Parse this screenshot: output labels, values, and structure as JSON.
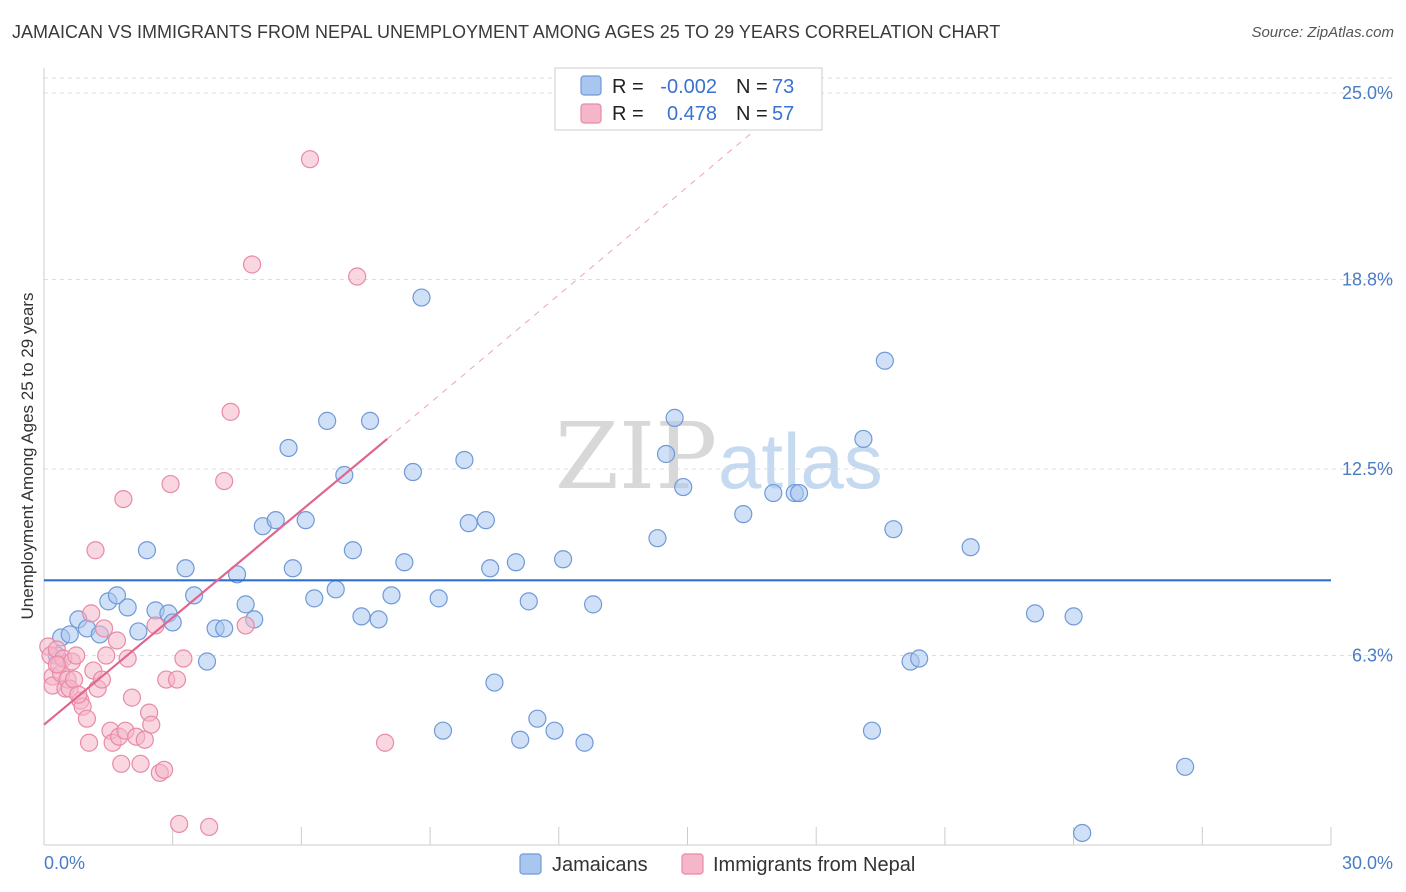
{
  "header": {
    "title": "JAMAICAN VS IMMIGRANTS FROM NEPAL UNEMPLOYMENT AMONG AGES 25 TO 29 YEARS CORRELATION CHART",
    "source": "Source: ZipAtlas.com"
  },
  "watermark": {
    "zip": "ZIP",
    "atlas": "atlas"
  },
  "colors": {
    "blue_fill": "#a9c6ee",
    "blue_stroke": "#6f9ad8",
    "blue_line": "#2f6fd0",
    "pink_fill": "#f4b6c8",
    "pink_stroke": "#e88aa8",
    "pink_line": "#e0668f",
    "tick_text": "#4a7cc4",
    "grid": "#dddddd"
  },
  "stats": {
    "r_label": "R =",
    "n_label": "N =",
    "rows": [
      {
        "series": "Jamaicans",
        "r": "-0.002",
        "n": "73"
      },
      {
        "series": "Immigrants from Nepal",
        "r": "0.478",
        "n": "57"
      }
    ]
  },
  "chart_data": {
    "type": "scatter",
    "title": "JAMAICAN VS IMMIGRANTS FROM NEPAL UNEMPLOYMENT AMONG AGES 25 TO 29 YEARS CORRELATION CHART",
    "xlabel": "",
    "ylabel": "Unemployment Among Ages 25 to 29 years",
    "xlim": [
      0,
      30
    ],
    "ylim": [
      0,
      25.5
    ],
    "x_tick_labels": [
      "0.0%",
      "30.0%"
    ],
    "y_ticks": [
      6.3,
      12.5,
      18.8,
      25.0
    ],
    "y_tick_labels": [
      "6.3%",
      "12.5%",
      "18.8%",
      "25.0%"
    ],
    "legend": [
      "Jamaicans",
      "Immigrants from Nepal"
    ],
    "series": [
      {
        "name": "Jamaicans",
        "color": "#a9c6ee",
        "trend": {
          "x": [
            0,
            30
          ],
          "y": [
            8.8,
            8.8
          ]
        },
        "points": [
          [
            0.3,
            6.3
          ],
          [
            0.4,
            6.9
          ],
          [
            0.6,
            7.0
          ],
          [
            0.8,
            7.5
          ],
          [
            1.0,
            7.2
          ],
          [
            1.3,
            7.0
          ],
          [
            1.5,
            8.1
          ],
          [
            1.7,
            8.3
          ],
          [
            1.95,
            7.9
          ],
          [
            2.2,
            7.1
          ],
          [
            2.4,
            9.8
          ],
          [
            2.6,
            7.8
          ],
          [
            2.9,
            7.7
          ],
          [
            3.0,
            7.4
          ],
          [
            3.3,
            9.2
          ],
          [
            3.5,
            8.3
          ],
          [
            3.8,
            6.1
          ],
          [
            4.0,
            7.2
          ],
          [
            4.2,
            7.2
          ],
          [
            4.5,
            9.0
          ],
          [
            4.7,
            8.0
          ],
          [
            4.9,
            7.5
          ],
          [
            5.1,
            10.6
          ],
          [
            5.4,
            10.8
          ],
          [
            5.7,
            13.2
          ],
          [
            5.8,
            9.2
          ],
          [
            6.1,
            10.8
          ],
          [
            6.3,
            8.2
          ],
          [
            6.6,
            14.1
          ],
          [
            6.8,
            8.5
          ],
          [
            7.0,
            12.3
          ],
          [
            7.2,
            9.8
          ],
          [
            7.4,
            7.6
          ],
          [
            7.6,
            14.1
          ],
          [
            7.8,
            7.5
          ],
          [
            8.1,
            8.3
          ],
          [
            8.4,
            9.4
          ],
          [
            8.6,
            12.4
          ],
          [
            8.8,
            18.2
          ],
          [
            9.2,
            8.2
          ],
          [
            9.3,
            3.8
          ],
          [
            9.8,
            12.8
          ],
          [
            9.9,
            10.7
          ],
          [
            10.3,
            10.8
          ],
          [
            10.4,
            9.2
          ],
          [
            10.5,
            5.4
          ],
          [
            11.0,
            9.4
          ],
          [
            11.1,
            3.5
          ],
          [
            11.3,
            8.1
          ],
          [
            11.5,
            4.2
          ],
          [
            11.9,
            3.8
          ],
          [
            12.1,
            9.5
          ],
          [
            12.6,
            3.4
          ],
          [
            12.8,
            8.0
          ],
          [
            14.3,
            10.2
          ],
          [
            14.5,
            13.0
          ],
          [
            14.7,
            14.2
          ],
          [
            14.9,
            11.9
          ],
          [
            16.3,
            11.0
          ],
          [
            17.0,
            11.7
          ],
          [
            17.5,
            11.7
          ],
          [
            17.6,
            11.7
          ],
          [
            19.1,
            13.5
          ],
          [
            19.3,
            3.8
          ],
          [
            19.6,
            16.1
          ],
          [
            19.8,
            10.5
          ],
          [
            20.2,
            6.1
          ],
          [
            20.4,
            6.2
          ],
          [
            21.6,
            9.9
          ],
          [
            23.1,
            7.7
          ],
          [
            24.0,
            7.6
          ],
          [
            24.2,
            0.4
          ],
          [
            26.6,
            2.6
          ]
        ]
      },
      {
        "name": "Immigrants from Nepal",
        "color": "#f4b6c8",
        "trend": {
          "x": [
            0,
            8.0
          ],
          "y": [
            4.0,
            13.5
          ]
        },
        "trend_extension": {
          "x": [
            8.0,
            16.6
          ],
          "y": [
            13.5,
            23.8
          ]
        },
        "points": [
          [
            0.1,
            6.6
          ],
          [
            0.15,
            6.3
          ],
          [
            0.2,
            5.6
          ],
          [
            0.2,
            5.3
          ],
          [
            0.3,
            6.5
          ],
          [
            0.35,
            6.0
          ],
          [
            0.4,
            5.7
          ],
          [
            0.45,
            6.2
          ],
          [
            0.5,
            5.2
          ],
          [
            0.55,
            5.5
          ],
          [
            0.6,
            5.2
          ],
          [
            0.65,
            6.1
          ],
          [
            0.7,
            5.5
          ],
          [
            0.75,
            6.3
          ],
          [
            0.85,
            4.8
          ],
          [
            0.9,
            4.6
          ],
          [
            1.0,
            4.2
          ],
          [
            1.05,
            3.4
          ],
          [
            1.1,
            7.7
          ],
          [
            1.15,
            5.8
          ],
          [
            1.2,
            9.8
          ],
          [
            1.25,
            5.2
          ],
          [
            1.35,
            5.5
          ],
          [
            1.4,
            7.2
          ],
          [
            1.45,
            6.3
          ],
          [
            1.55,
            3.8
          ],
          [
            1.6,
            3.4
          ],
          [
            1.7,
            6.8
          ],
          [
            1.75,
            3.6
          ],
          [
            1.8,
            2.7
          ],
          [
            1.85,
            11.5
          ],
          [
            1.9,
            3.8
          ],
          [
            1.95,
            6.2
          ],
          [
            2.05,
            4.9
          ],
          [
            2.15,
            3.6
          ],
          [
            2.25,
            2.7
          ],
          [
            2.35,
            3.5
          ],
          [
            2.45,
            4.4
          ],
          [
            2.5,
            4.0
          ],
          [
            2.6,
            7.3
          ],
          [
            2.7,
            2.4
          ],
          [
            2.8,
            2.5
          ],
          [
            2.85,
            5.5
          ],
          [
            2.95,
            12.0
          ],
          [
            3.1,
            5.5
          ],
          [
            3.15,
            0.7
          ],
          [
            3.25,
            6.2
          ],
          [
            3.85,
            0.6
          ],
          [
            4.2,
            12.1
          ],
          [
            4.35,
            14.4
          ],
          [
            4.7,
            7.3
          ],
          [
            4.85,
            19.3
          ],
          [
            6.2,
            22.8
          ],
          [
            7.3,
            18.9
          ],
          [
            7.95,
            3.4
          ],
          [
            0.3,
            6.0
          ],
          [
            0.8,
            5.0
          ]
        ]
      }
    ]
  }
}
